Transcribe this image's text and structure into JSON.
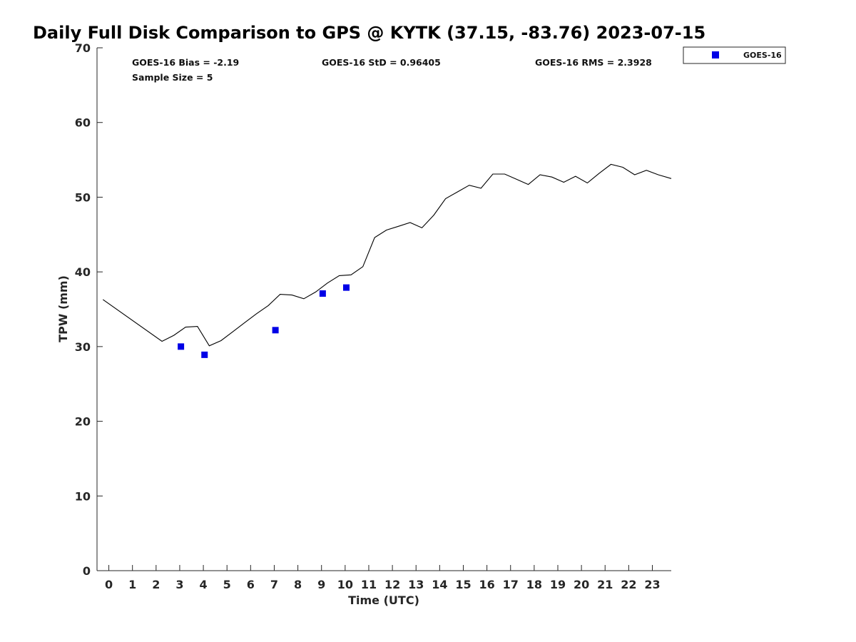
{
  "chart_data": {
    "type": "line",
    "title": "Daily Full Disk Comparison to GPS @ KYTK (37.15, -83.76) 2023-07-15",
    "xlabel": "Time (UTC)",
    "ylabel": "TPW (mm)",
    "xlim": [
      -0.5,
      23.8
    ],
    "ylim": [
      0,
      70
    ],
    "x_ticks": [
      0,
      1,
      2,
      3,
      4,
      5,
      6,
      7,
      8,
      9,
      10,
      11,
      12,
      13,
      14,
      15,
      16,
      17,
      18,
      19,
      20,
      21,
      22,
      23
    ],
    "y_ticks": [
      0,
      10,
      20,
      30,
      40,
      50,
      60,
      70
    ],
    "grid": false,
    "legend_position": "top-right, outside plot",
    "stats": {
      "bias": "GOES-16 Bias = -2.19",
      "std": "GOES-16 StD = 0.96405",
      "rms": "GOES-16 RMS = 2.3928",
      "sample": "Sample Size = 5"
    },
    "series": [
      {
        "kind": "line",
        "color": "#000000",
        "x": [
          -0.25,
          2.25,
          2.75,
          3.25,
          3.75,
          4.25,
          4.75,
          5.25,
          5.75,
          6.25,
          6.75,
          7.25,
          7.75,
          8.25,
          8.75,
          9.25,
          9.75,
          10.25,
          10.75,
          11.25,
          11.75,
          12.25,
          12.75,
          13.25,
          13.75,
          14.25,
          14.75,
          15.25,
          15.75,
          16.25,
          16.75,
          17.25,
          17.75,
          18.25,
          18.75,
          19.25,
          19.75,
          20.25,
          20.75,
          21.25,
          21.75,
          22.25,
          22.75,
          23.25,
          23.8
        ],
        "y": [
          36.3,
          30.7,
          31.5,
          32.6,
          32.7,
          30.1,
          30.8,
          32.0,
          33.2,
          34.4,
          35.5,
          37.0,
          36.9,
          36.4,
          37.3,
          38.5,
          39.5,
          39.6,
          40.7,
          44.6,
          45.6,
          46.1,
          46.6,
          45.9,
          47.6,
          49.8,
          50.7,
          51.6,
          51.2,
          53.1,
          53.1,
          52.4,
          51.7,
          53.0,
          52.7,
          52.0,
          52.8,
          51.9,
          53.2,
          54.4,
          54.0,
          53.0,
          53.6,
          53.0,
          52.5
        ]
      },
      {
        "name": "GOES-16",
        "kind": "scatter",
        "color": "#0000e6",
        "x": [
          3.05,
          4.05,
          7.05,
          9.05,
          10.05
        ],
        "y": [
          30.0,
          28.9,
          32.2,
          37.1,
          37.9
        ]
      }
    ]
  }
}
